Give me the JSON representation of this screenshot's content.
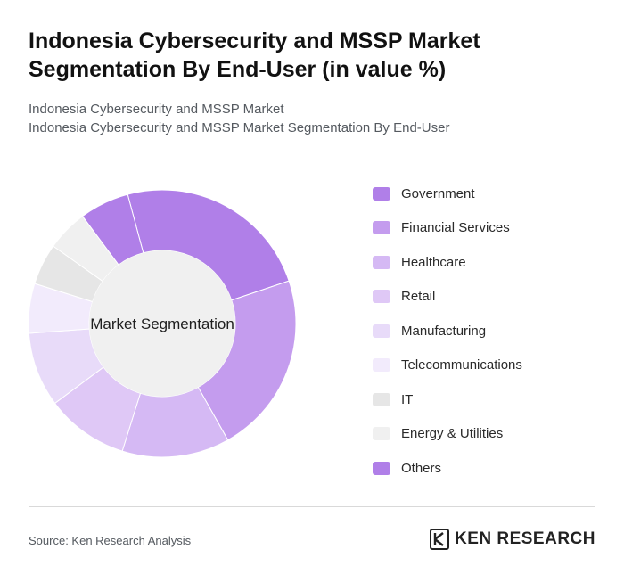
{
  "header": {
    "title": "Indonesia Cybersecurity and MSSP Market Segmentation By End-User (in value %)",
    "subtitle_line1": "Indonesia Cybersecurity and MSSP Market",
    "subtitle_line2": "Indonesia Cybersecurity and MSSP Market Segmentation By End-User"
  },
  "chart_data": {
    "type": "pie",
    "variant": "donut",
    "center_label": "Market Segmentation",
    "legend_placement": "right",
    "categories": [
      "Government",
      "Financial Services",
      "Healthcare",
      "Retail",
      "Manufacturing",
      "Telecommunications",
      "IT",
      "Energy & Utilities",
      "Others"
    ],
    "values": [
      24,
      22,
      13,
      10,
      9,
      6,
      5,
      5,
      6
    ],
    "colors": [
      "#b07fe8",
      "#c49cee",
      "#d5b9f4",
      "#dfc8f6",
      "#e8dbf9",
      "#f2ebfc",
      "#e6e6e6",
      "#f0f0f0",
      "#b07fe8"
    ],
    "start_category": "Government"
  },
  "footer": {
    "source": "Source: Ken Research Analysis",
    "brand": "KEN RESEARCH",
    "brand_icon": "ken-research-logo-icon"
  }
}
